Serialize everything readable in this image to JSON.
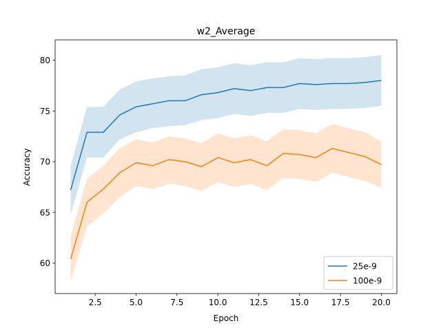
{
  "chart_data": {
    "type": "line",
    "title": "w2_Average",
    "xlabel": "Epoch",
    "ylabel": "Accuracy",
    "xlim": [
      0.05,
      20.95
    ],
    "ylim": [
      57.0,
      82.0
    ],
    "xticks": [
      2.5,
      5.0,
      7.5,
      10.0,
      12.5,
      15.0,
      17.5,
      20.0
    ],
    "xtick_labels": [
      "2.5",
      "5.0",
      "7.5",
      "10.0",
      "12.5",
      "15.0",
      "17.5",
      "20.0"
    ],
    "yticks": [
      60,
      65,
      70,
      75,
      80
    ],
    "ytick_labels": [
      "60",
      "65",
      "70",
      "75",
      "80"
    ],
    "grid": false,
    "legend_position": "lower-right",
    "x": [
      1,
      2,
      3,
      4,
      5,
      6,
      7,
      8,
      9,
      10,
      11,
      12,
      13,
      14,
      15,
      16,
      17,
      18,
      19,
      20
    ],
    "series": [
      {
        "name": "25e-9",
        "color": "#1f77b4",
        "band_color": "#1f77b4",
        "values": [
          67.2,
          72.9,
          72.9,
          74.6,
          75.4,
          75.7,
          76.0,
          76.0,
          76.6,
          76.8,
          77.2,
          77.0,
          77.3,
          77.3,
          77.7,
          77.6,
          77.7,
          77.7,
          77.8,
          78.0
        ],
        "lower": [
          64.8,
          70.4,
          70.4,
          72.2,
          72.9,
          73.3,
          73.5,
          73.6,
          74.1,
          74.3,
          74.7,
          74.5,
          74.8,
          74.8,
          75.2,
          75.1,
          75.2,
          75.2,
          75.3,
          75.5
        ],
        "upper": [
          69.6,
          75.4,
          75.4,
          77.1,
          77.9,
          78.2,
          78.4,
          78.5,
          79.1,
          79.3,
          79.7,
          79.5,
          79.8,
          79.8,
          80.2,
          80.1,
          80.2,
          80.2,
          80.3,
          80.5
        ]
      },
      {
        "name": "100e-9",
        "color": "#ff7f0e",
        "band_color": "#ff7f0e",
        "values": [
          60.4,
          66.0,
          67.3,
          68.9,
          69.9,
          69.6,
          70.2,
          70.0,
          69.5,
          70.4,
          69.9,
          70.2,
          69.6,
          70.8,
          70.7,
          70.4,
          71.3,
          70.9,
          70.5,
          69.7
        ],
        "lower": [
          58.2,
          63.6,
          64.9,
          66.5,
          67.6,
          67.3,
          67.8,
          67.6,
          67.1,
          68.0,
          67.5,
          67.8,
          67.2,
          68.4,
          68.3,
          68.0,
          68.9,
          68.5,
          68.1,
          67.4
        ],
        "upper": [
          62.7,
          68.3,
          69.6,
          71.3,
          72.2,
          71.9,
          72.5,
          72.3,
          71.8,
          72.8,
          72.3,
          72.6,
          72.0,
          73.2,
          73.1,
          72.8,
          73.7,
          73.3,
          72.9,
          72.0
        ]
      }
    ]
  }
}
